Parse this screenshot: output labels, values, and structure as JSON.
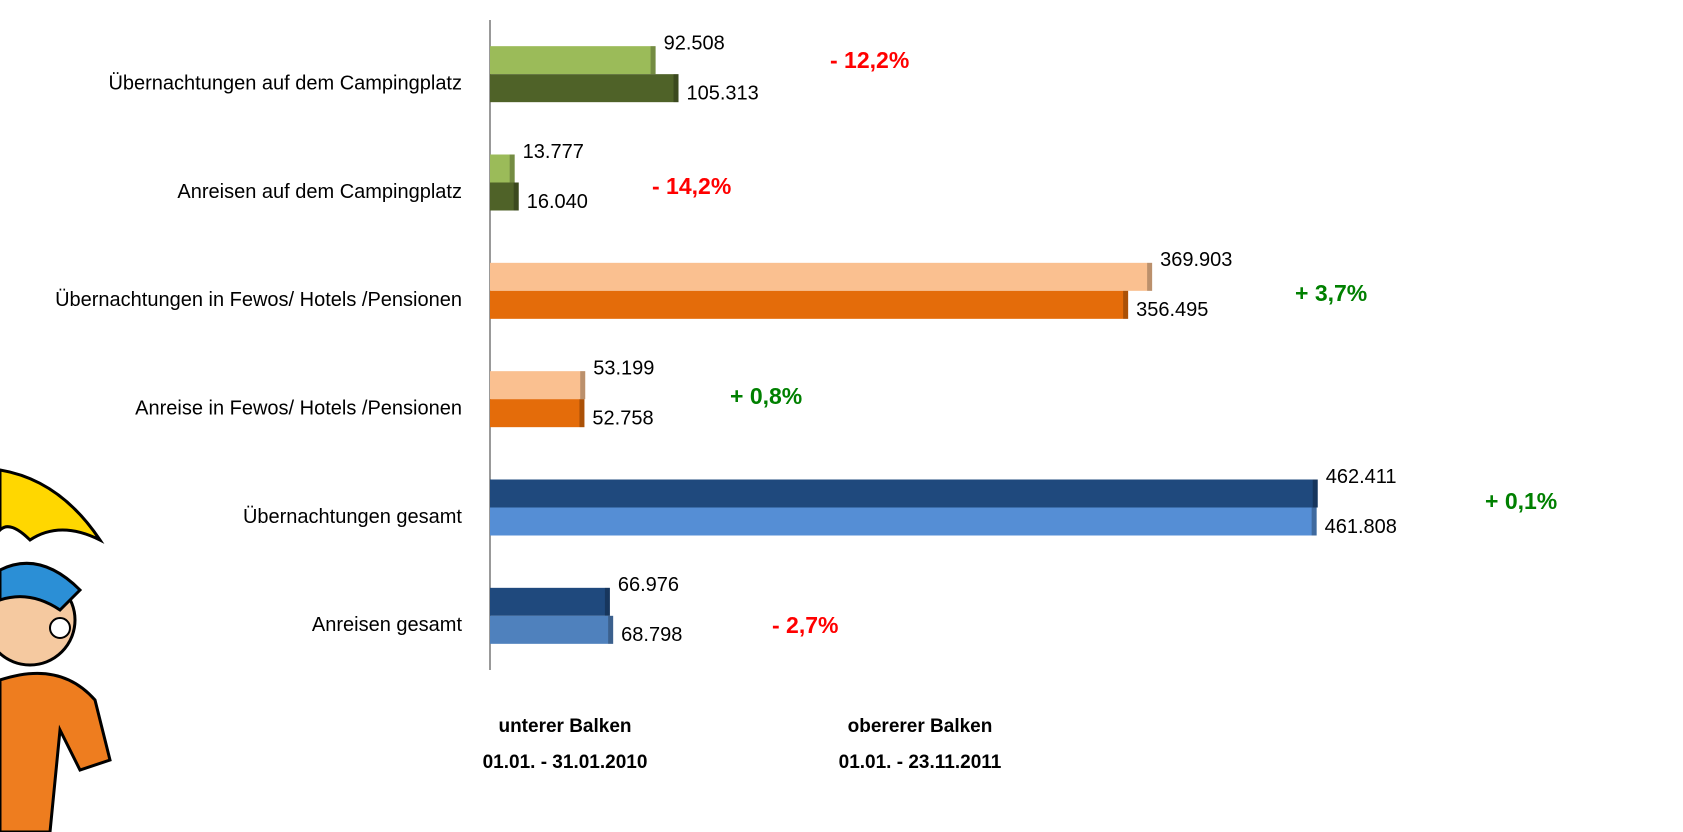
{
  "chart_data": {
    "type": "bar",
    "orientation": "horizontal",
    "categories": [
      "Übernachtungen auf dem Campingplatz",
      "Anreisen auf dem Campingplatz",
      "Übernachtungen in Fewos/ Hotels /Pensionen",
      "Anreise in Fewos/ Hotels /Pensionen",
      "Übernachtungen gesamt",
      "Anreisen gesamt"
    ],
    "series": [
      {
        "name": "obererer Balken",
        "period": "01.01. - 23.11.2011",
        "colors": [
          "#9bbb59",
          "#9bbb59",
          "#fac090",
          "#fac090",
          "#1f497d",
          "#1f497d"
        ],
        "values": [
          92508,
          13777,
          369903,
          53199,
          462411,
          66976
        ],
        "value_labels": [
          "92.508",
          "13.777",
          "369.903",
          "53.199",
          "462.411",
          "66.976"
        ]
      },
      {
        "name": "unterer Balken",
        "period": "01.01. - 31.01.2010",
        "colors": [
          "#4f6228",
          "#4f6228",
          "#e46c0a",
          "#e46c0a",
          "#558ed5",
          "#4f81bd"
        ],
        "values": [
          105313,
          16040,
          356495,
          52758,
          461808,
          68798
        ],
        "value_labels": [
          "105.313",
          "16.040",
          "356.495",
          "52.758",
          "461.808",
          "68.798"
        ]
      }
    ],
    "annotations": [
      {
        "text": "- 12,2%",
        "color": "#ff0000"
      },
      {
        "text": "- 14,2%",
        "color": "#ff0000"
      },
      {
        "text": "+ 3,7%",
        "color": "#008000"
      },
      {
        "text": "+ 0,8%",
        "color": "#008000"
      },
      {
        "text": "+ 0,1%",
        "color": "#008000"
      },
      {
        "text": "- 2,7%",
        "color": "#ff0000"
      }
    ],
    "xlim": [
      0,
      500000
    ]
  }
}
